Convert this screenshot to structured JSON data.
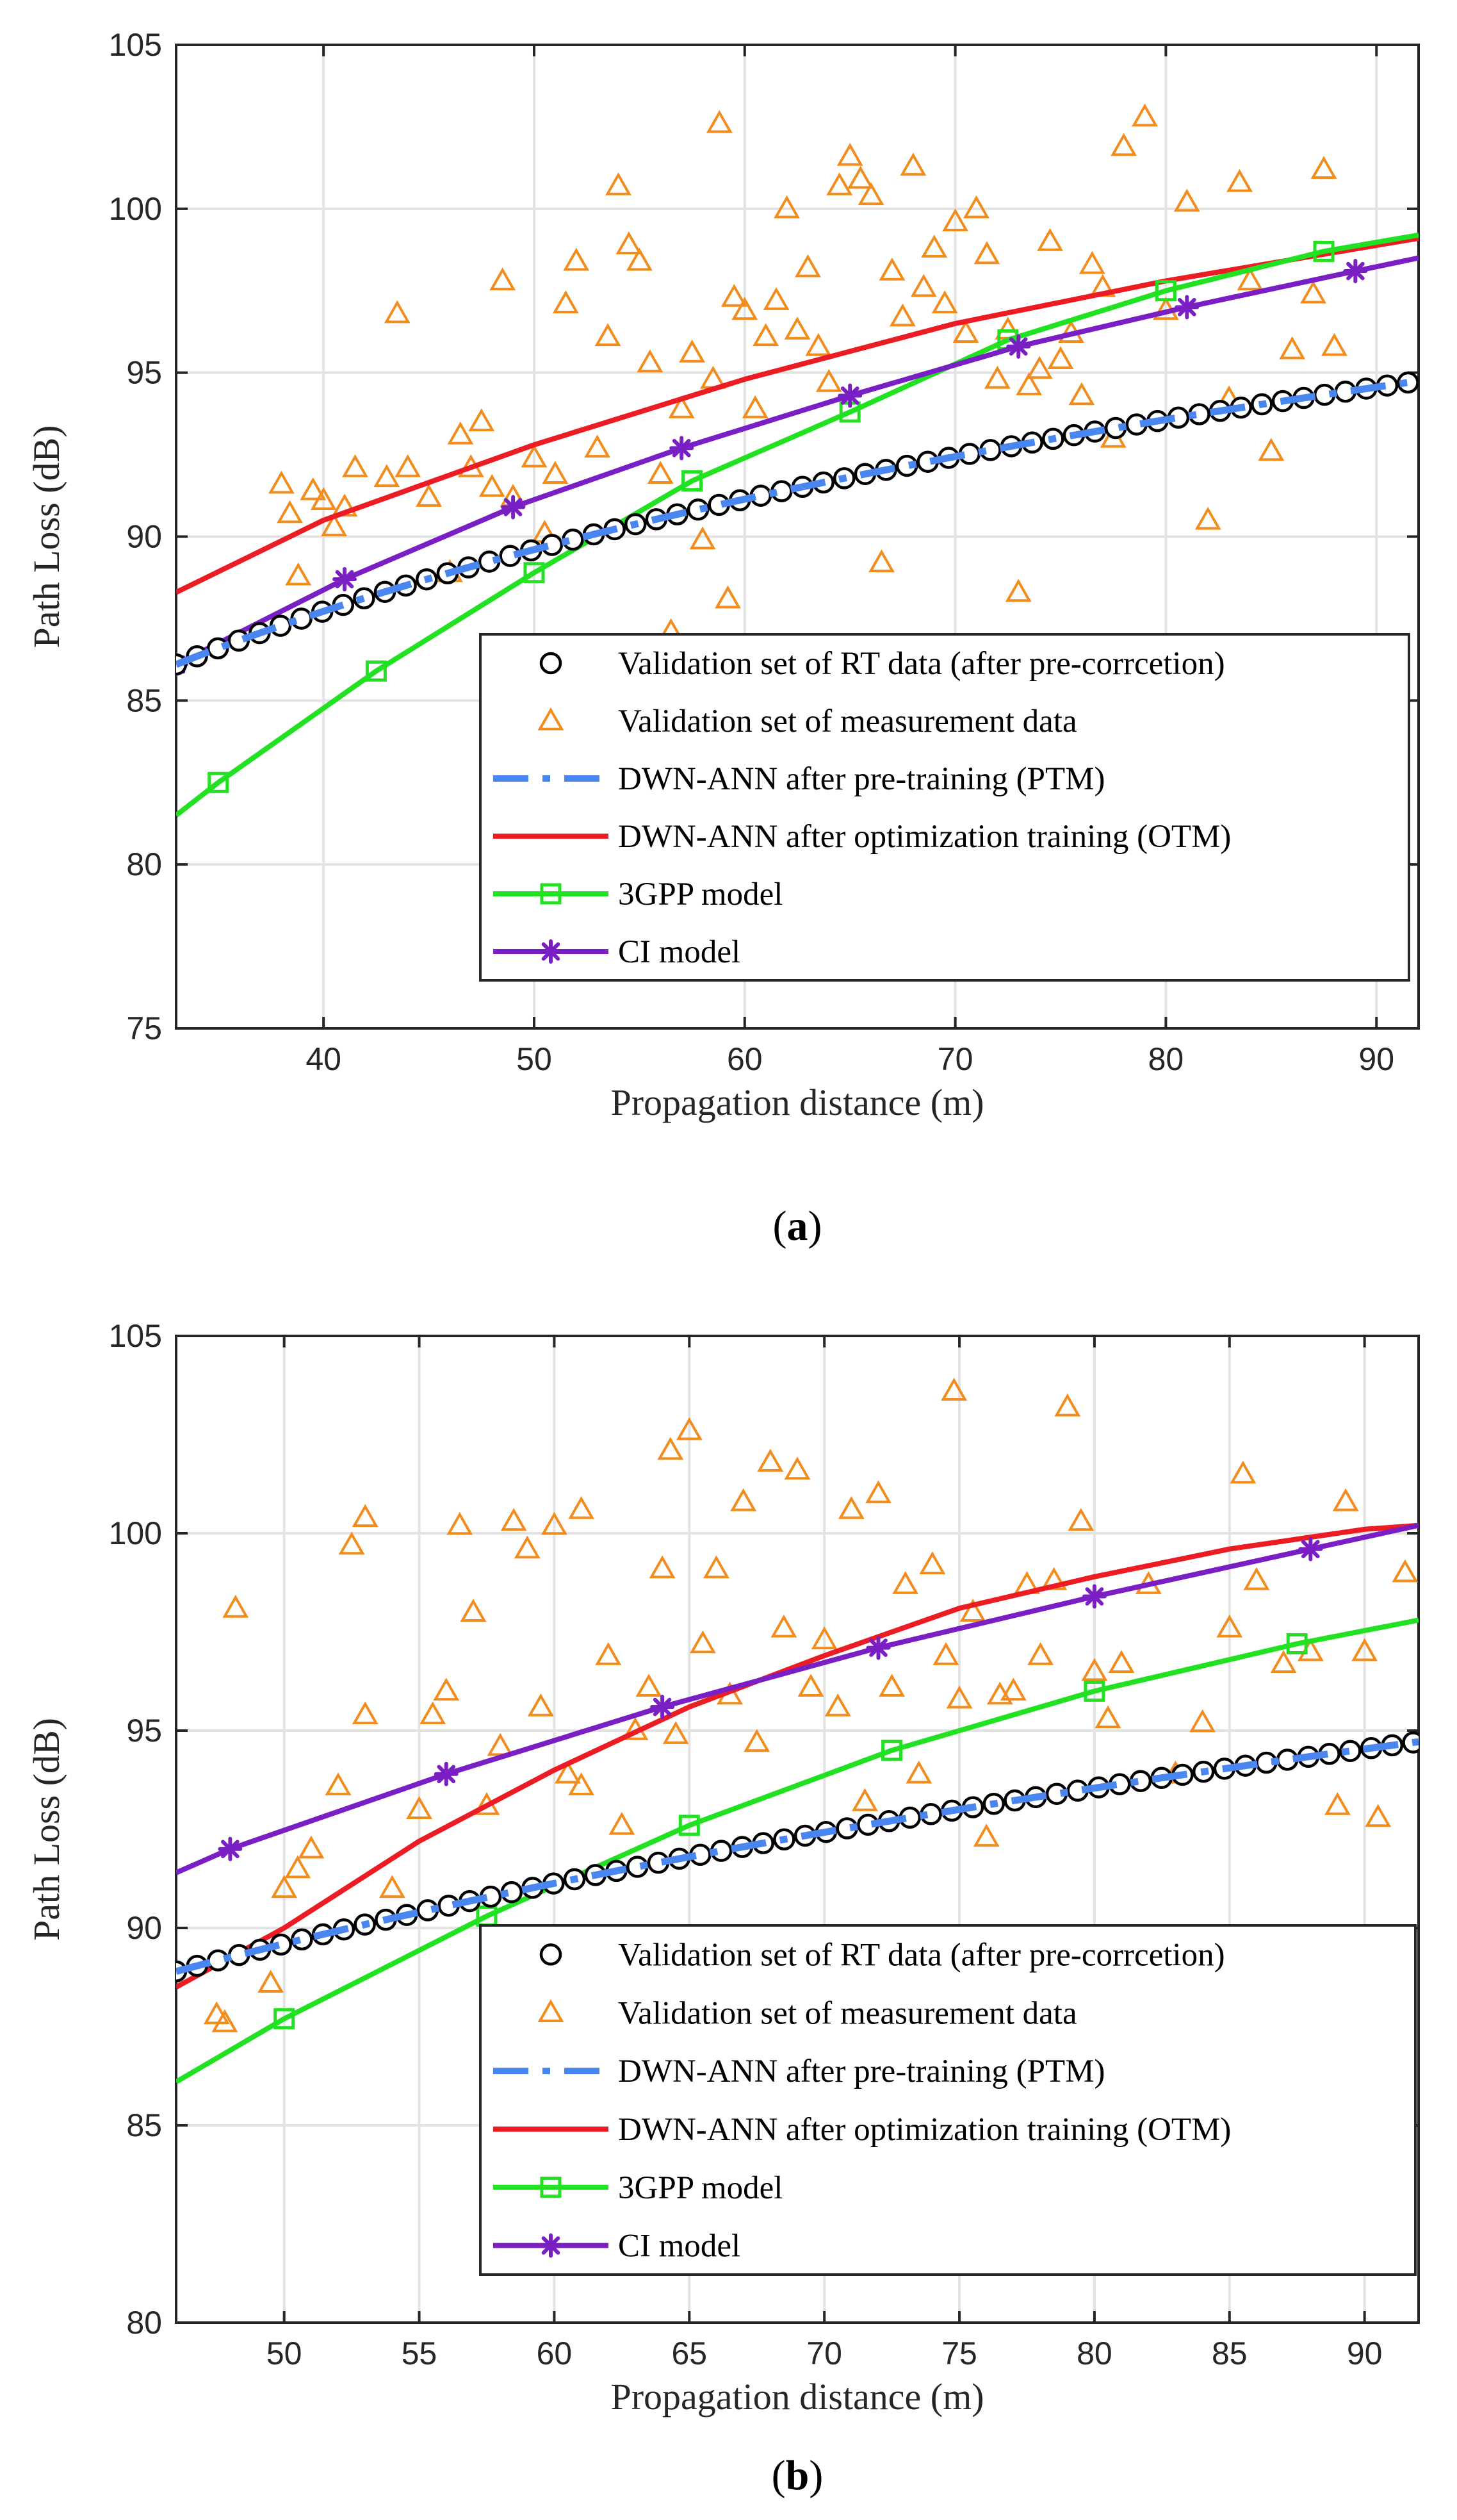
{
  "colors": {
    "rt": "#000000",
    "meas": "#f28c1c",
    "ptm": "#3b7ae8",
    "ptm_fill": "#4a86f0",
    "otm": "#ec1c24",
    "gpp": "#22e022",
    "ci": "#7a1fc4"
  },
  "chart_data": [
    {
      "type": "line",
      "panel_label": "(a)",
      "panel_prefix": "(",
      "panel_letter": "a",
      "panel_suffix": ")",
      "xlabel": "Propagation distance (m)",
      "ylabel": "Path Loss (dB)",
      "xlim": [
        33,
        92
      ],
      "ylim": [
        75,
        105
      ],
      "xticks": [
        40,
        50,
        60,
        70,
        80,
        90
      ],
      "yticks": [
        75,
        80,
        85,
        90,
        95,
        100,
        105
      ],
      "grid": true,
      "legend_location": "bottom-right",
      "legend": [
        "Validation set of RT data (after pre-corrcetion)",
        "Validation set of measurement data",
        "DWN-ANN after pre-training (PTM)",
        "DWN-ANN after optimization training (OTM)",
        "3GPP model",
        "CI model"
      ],
      "series": [
        {
          "name": "Validation set of RT data (after pre-corrcetion)",
          "style": "circle",
          "curve": {
            "a": 86.1,
            "b": 94.7,
            "x0": 33,
            "x1": 91.5
          },
          "range": [
            33,
            91.5
          ],
          "count": 60
        },
        {
          "name": "Validation set of measurement data",
          "style": "triangle",
          "points": [
            [
              38,
              91.6
            ],
            [
              38.4,
              90.7
            ],
            [
              38.8,
              88.8
            ],
            [
              39.5,
              91.4
            ],
            [
              40,
              91.1
            ],
            [
              40.5,
              90.3
            ],
            [
              41,
              90.9
            ],
            [
              41.5,
              92.1
            ],
            [
              43,
              91.8
            ],
            [
              43.5,
              96.8
            ],
            [
              44,
              92.1
            ],
            [
              45,
              91.2
            ],
            [
              46,
              88.9
            ],
            [
              46.5,
              93.1
            ],
            [
              47,
              92.1
            ],
            [
              47.5,
              93.5
            ],
            [
              48,
              91.5
            ],
            [
              48.5,
              97.8
            ],
            [
              49,
              91.2
            ],
            [
              50,
              92.4
            ],
            [
              50.5,
              90.1
            ],
            [
              51,
              91.9
            ],
            [
              51.5,
              97.1
            ],
            [
              52,
              98.4
            ],
            [
              53,
              92.7
            ],
            [
              53.5,
              96.1
            ],
            [
              54,
              100.7
            ],
            [
              54.5,
              98.9
            ],
            [
              55,
              98.4
            ],
            [
              55.5,
              95.3
            ],
            [
              56,
              91.9
            ],
            [
              56.5,
              87.1
            ],
            [
              57,
              93.9
            ],
            [
              57.5,
              95.6
            ],
            [
              58,
              89.9
            ],
            [
              58.5,
              94.8
            ],
            [
              58.8,
              102.6
            ],
            [
              59.2,
              88.1
            ],
            [
              59.5,
              97.3
            ],
            [
              60,
              96.9
            ],
            [
              60.5,
              93.9
            ],
            [
              61,
              96.1
            ],
            [
              61.5,
              97.2
            ],
            [
              62,
              100.0
            ],
            [
              62.5,
              96.3
            ],
            [
              63,
              98.2
            ],
            [
              63.5,
              95.8
            ],
            [
              64,
              94.7
            ],
            [
              64.5,
              100.7
            ],
            [
              65,
              101.6
            ],
            [
              65.5,
              100.9
            ],
            [
              66,
              100.4
            ],
            [
              66.5,
              89.2
            ],
            [
              67,
              98.1
            ],
            [
              67.5,
              96.7
            ],
            [
              68,
              101.3
            ],
            [
              68.5,
              97.6
            ],
            [
              69,
              98.8
            ],
            [
              69.5,
              97.1
            ],
            [
              70,
              99.6
            ],
            [
              70.5,
              96.2
            ],
            [
              71,
              100.0
            ],
            [
              71.5,
              98.6
            ],
            [
              72,
              94.8
            ],
            [
              72.5,
              96.3
            ],
            [
              73,
              88.3
            ],
            [
              73.5,
              94.6
            ],
            [
              74,
              95.1
            ],
            [
              74.5,
              99.0
            ],
            [
              75,
              95.4
            ],
            [
              75.5,
              96.2
            ],
            [
              76,
              94.3
            ],
            [
              76.5,
              98.3
            ],
            [
              77,
              97.6
            ],
            [
              77.5,
              93.0
            ],
            [
              78,
              101.9
            ],
            [
              79,
              102.8
            ],
            [
              80,
              96.9
            ],
            [
              81,
              100.2
            ],
            [
              82,
              90.5
            ],
            [
              83,
              94.2
            ],
            [
              83.5,
              100.8
            ],
            [
              84,
              97.8
            ],
            [
              85,
              92.6
            ],
            [
              86,
              95.7
            ],
            [
              87,
              97.4
            ],
            [
              87.5,
              101.2
            ],
            [
              88,
              95.8
            ]
          ]
        },
        {
          "name": "DWN-ANN after pre-training (PTM)",
          "style": "dashdot",
          "curve": {
            "a": 86.1,
            "b": 94.7,
            "x0": 33,
            "x1": 91.5
          },
          "range": [
            33,
            92
          ]
        },
        {
          "name": "DWN-ANN after optimization training (OTM)",
          "style": "line",
          "x": [
            33,
            40,
            50,
            60,
            70,
            80,
            92
          ],
          "y": [
            88.3,
            90.5,
            92.8,
            94.8,
            96.5,
            97.8,
            99.1
          ]
        },
        {
          "name": "3GPP model",
          "style": "square",
          "x": [
            33,
            35,
            42.5,
            50,
            57.5,
            65,
            72.5,
            80,
            87.5,
            92
          ],
          "y": [
            81.5,
            82.5,
            85.9,
            88.9,
            91.7,
            93.8,
            96.0,
            97.5,
            98.7,
            99.2
          ],
          "marker_x": [
            35,
            42.5,
            50,
            57.5,
            65,
            72.5,
            80,
            87.5
          ]
        },
        {
          "name": "CI model",
          "style": "asterisk",
          "x": [
            33,
            41,
            49,
            57,
            65,
            73,
            81,
            89,
            92
          ],
          "y": [
            86.1,
            88.7,
            90.9,
            92.7,
            94.3,
            95.8,
            97.0,
            98.1,
            98.5
          ],
          "marker_x": [
            33,
            41,
            49,
            57,
            65,
            73,
            81,
            89
          ]
        }
      ]
    },
    {
      "type": "line",
      "panel_label": "(b)",
      "panel_prefix": "(",
      "panel_letter": "b",
      "panel_suffix": ")",
      "xlabel": "Propagation distance (m)",
      "ylabel": "Path Loss (dB)",
      "xlim": [
        46,
        92
      ],
      "ylim": [
        80,
        105
      ],
      "xticks": [
        50,
        55,
        60,
        65,
        70,
        75,
        80,
        85,
        90
      ],
      "yticks": [
        80,
        85,
        90,
        95,
        100,
        105
      ],
      "grid": true,
      "legend_location": "bottom-right",
      "legend": [
        "Validation set of RT data (after pre-corrcetion)",
        "Validation set of measurement data",
        "DWN-ANN after pre-training (PTM)",
        "DWN-ANN after optimization training (OTM)",
        "3GPP model",
        "CI model"
      ],
      "series": [
        {
          "name": "Validation set of RT data (after pre-corrcetion)",
          "style": "circle",
          "curve": {
            "a": 88.9,
            "b": 94.7,
            "x0": 46,
            "x1": 91.8
          },
          "range": [
            46,
            91.8
          ],
          "count": 60
        },
        {
          "name": "Validation set of measurement data",
          "style": "triangle",
          "points": [
            [
              47.5,
              87.8
            ],
            [
              47.8,
              87.6
            ],
            [
              48.2,
              98.1
            ],
            [
              49.5,
              88.6
            ],
            [
              50,
              91.0
            ],
            [
              50.5,
              91.5
            ],
            [
              51,
              92.0
            ],
            [
              52,
              93.6
            ],
            [
              52.5,
              99.7
            ],
            [
              53,
              100.4
            ],
            [
              53,
              95.4
            ],
            [
              54,
              91.0
            ],
            [
              55,
              93.0
            ],
            [
              55.5,
              95.4
            ],
            [
              56,
              96.0
            ],
            [
              56.5,
              100.2
            ],
            [
              57,
              98.0
            ],
            [
              57.5,
              93.1
            ],
            [
              58,
              94.6
            ],
            [
              58.5,
              100.3
            ],
            [
              59,
              99.6
            ],
            [
              59.5,
              95.6
            ],
            [
              60,
              100.2
            ],
            [
              60.5,
              93.9
            ],
            [
              61,
              100.6
            ],
            [
              61,
              93.6
            ],
            [
              62,
              96.9
            ],
            [
              62.5,
              92.6
            ],
            [
              63,
              95.0
            ],
            [
              63.5,
              96.1
            ],
            [
              64,
              99.1
            ],
            [
              64.3,
              102.1
            ],
            [
              64.5,
              94.9
            ],
            [
              65,
              102.6
            ],
            [
              65.5,
              97.2
            ],
            [
              66,
              99.1
            ],
            [
              66.5,
              95.9
            ],
            [
              67,
              100.8
            ],
            [
              67.5,
              94.7
            ],
            [
              68,
              101.8
            ],
            [
              68.5,
              97.6
            ],
            [
              69,
              101.6
            ],
            [
              69.5,
              96.1
            ],
            [
              70,
              97.3
            ],
            [
              70.5,
              95.6
            ],
            [
              71,
              100.6
            ],
            [
              71.5,
              93.2
            ],
            [
              72,
              101.0
            ],
            [
              72.5,
              96.1
            ],
            [
              73,
              98.7
            ],
            [
              73.5,
              93.9
            ],
            [
              74,
              99.2
            ],
            [
              74.5,
              96.9
            ],
            [
              74.8,
              103.6
            ],
            [
              75,
              95.8
            ],
            [
              75.5,
              98.0
            ],
            [
              76,
              92.3
            ],
            [
              76.5,
              95.9
            ],
            [
              77,
              96.0
            ],
            [
              77.5,
              98.7
            ],
            [
              78,
              96.9
            ],
            [
              78.5,
              98.8
            ],
            [
              79,
              103.2
            ],
            [
              79.5,
              100.3
            ],
            [
              80,
              96.5
            ],
            [
              80.5,
              95.3
            ],
            [
              81,
              96.7
            ],
            [
              82,
              98.7
            ],
            [
              83,
              93.9
            ],
            [
              84,
              95.2
            ],
            [
              85,
              97.6
            ],
            [
              85.5,
              101.5
            ],
            [
              86,
              98.8
            ],
            [
              87,
              96.7
            ],
            [
              88,
              97.0
            ],
            [
              89,
              93.1
            ],
            [
              89.3,
              100.8
            ],
            [
              90,
              97.0
            ],
            [
              90.5,
              92.8
            ],
            [
              91.5,
              99.0
            ]
          ]
        },
        {
          "name": "DWN-ANN after pre-training (PTM)",
          "style": "dashdot",
          "curve": {
            "a": 88.9,
            "b": 94.7,
            "x0": 46,
            "x1": 91.8
          },
          "range": [
            46,
            92
          ]
        },
        {
          "name": "DWN-ANN after optimization training (OTM)",
          "style": "line",
          "x": [
            46,
            50,
            55,
            60,
            65,
            70,
            75,
            80,
            85,
            90,
            92
          ],
          "y": [
            88.5,
            90.0,
            92.2,
            94.0,
            95.6,
            96.9,
            98.1,
            98.9,
            99.6,
            100.1,
            100.2
          ]
        },
        {
          "name": "3GPP model",
          "style": "square",
          "x": [
            46,
            50,
            57.5,
            65,
            72.5,
            80,
            87.5,
            92
          ],
          "y": [
            86.1,
            87.7,
            90.3,
            92.6,
            94.5,
            96.0,
            97.2,
            97.8
          ],
          "marker_x": [
            50,
            57.5,
            65,
            72.5,
            80,
            87.5
          ]
        },
        {
          "name": "CI model",
          "style": "asterisk",
          "x": [
            46,
            48,
            56,
            64,
            72,
            80,
            88,
            92
          ],
          "y": [
            91.4,
            92.0,
            93.9,
            95.6,
            97.1,
            98.4,
            99.6,
            100.2
          ],
          "marker_x": [
            48,
            56,
            64,
            72,
            80,
            88
          ]
        }
      ]
    }
  ]
}
